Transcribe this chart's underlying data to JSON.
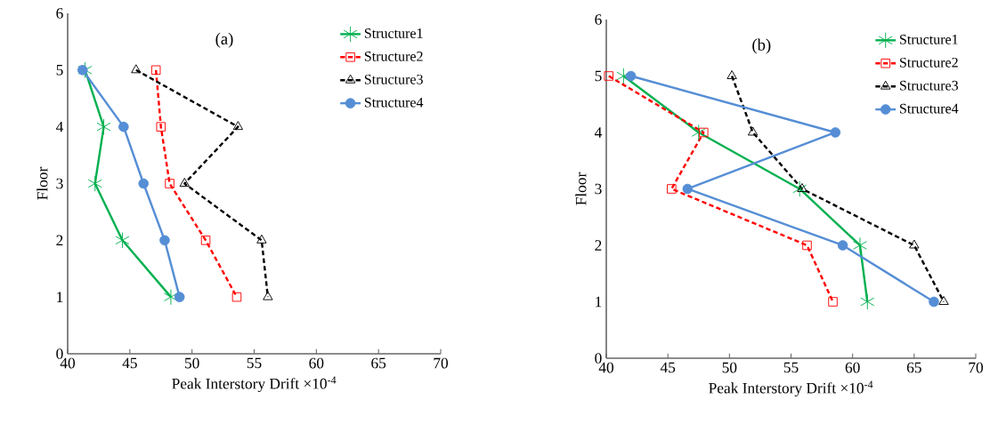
{
  "chart_data": [
    {
      "type": "line",
      "title": "(a)",
      "xlabel": "Peak Interstory Drift ×10$^{-4}$",
      "ylabel": "Floor",
      "xlim": [
        40,
        70
      ],
      "ylim": [
        0,
        6
      ],
      "xticks": [
        40,
        45,
        50,
        55,
        60,
        65,
        70
      ],
      "yticks": [
        0,
        1,
        2,
        3,
        4,
        5,
        6
      ],
      "grid": false,
      "legend": "top right",
      "series": [
        {
          "name": "Structure1",
          "color": "#00b050",
          "marker": "cross",
          "line_style": "solid",
          "x": [
            41.4,
            42.9,
            42.2,
            44.4,
            48.3
          ],
          "values": [
            5,
            4,
            3,
            2,
            1
          ]
        },
        {
          "name": "Structure2",
          "color": "#ff0000",
          "marker": "square",
          "line_style": "dashed",
          "x": [
            47.1,
            47.5,
            48.2,
            51.1,
            53.6
          ],
          "values": [
            5,
            4,
            3,
            2,
            1
          ]
        },
        {
          "name": "Structure3",
          "color": "#000000",
          "marker": "triangle",
          "line_style": "dashed",
          "x": [
            45.5,
            53.7,
            49.4,
            55.6,
            56.1
          ],
          "values": [
            5,
            4,
            3,
            2,
            1
          ]
        },
        {
          "name": "Structure4",
          "color": "#558ed5",
          "marker": "circle",
          "line_style": "solid",
          "x": [
            41.2,
            44.5,
            46.1,
            47.8,
            49.0
          ],
          "values": [
            5,
            4,
            3,
            2,
            1
          ]
        }
      ]
    },
    {
      "type": "line",
      "title": "(b)",
      "xlabel": "Peak Interstory Drift ×10$^{-4}$",
      "ylabel": "Floor",
      "xlim": [
        40,
        70
      ],
      "ylim": [
        0,
        6
      ],
      "xticks": [
        40,
        45,
        50,
        55,
        60,
        65,
        70
      ],
      "yticks": [
        0,
        1,
        2,
        3,
        4,
        5,
        6
      ],
      "grid": false,
      "legend": "top right",
      "series": [
        {
          "name": "Structure1",
          "color": "#00b050",
          "marker": "cross",
          "line_style": "solid",
          "x": [
            41.4,
            47.5,
            55.7,
            60.6,
            61.2
          ],
          "values": [
            5,
            4,
            3,
            2,
            1
          ]
        },
        {
          "name": "Structure2",
          "color": "#ff0000",
          "marker": "square",
          "line_style": "dashed",
          "x": [
            40.2,
            47.9,
            45.3,
            56.3,
            58.4
          ],
          "values": [
            5,
            4,
            3,
            2,
            1
          ]
        },
        {
          "name": "Structure3",
          "color": "#000000",
          "marker": "triangle",
          "line_style": "dashed",
          "x": [
            50.2,
            51.9,
            55.9,
            65.0,
            67.4
          ],
          "values": [
            5,
            4,
            3,
            2,
            1
          ]
        },
        {
          "name": "Structure4",
          "color": "#558ed5",
          "marker": "circle",
          "line_style": "solid",
          "x": [
            42.0,
            58.6,
            46.6,
            59.2,
            66.6
          ],
          "values": [
            5,
            4,
            3,
            2,
            1
          ]
        }
      ]
    }
  ]
}
